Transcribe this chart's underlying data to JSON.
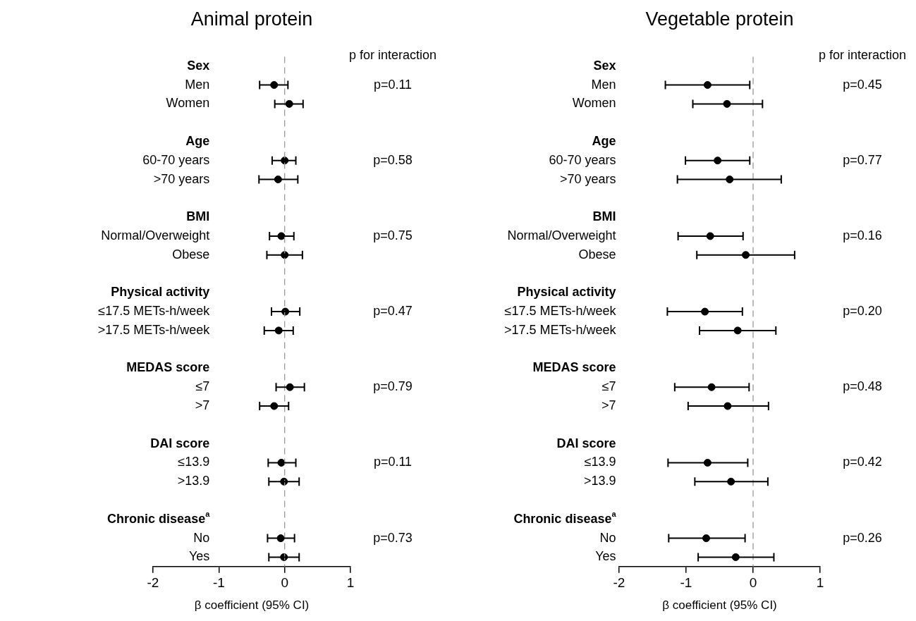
{
  "chart_data": [
    {
      "type": "scatter",
      "orientation": "horizontal",
      "title": "Animal protein",
      "xlabel": "β coefficient (95% CI)",
      "color": "#000000",
      "marker": "circle",
      "categories": [
        "Sex",
        "Men",
        "Women",
        null,
        "Age",
        "60-70 years",
        ">70 years",
        null,
        "BMI",
        "Normal/Overweight",
        "Obese",
        null,
        "Physical activity",
        "≤17.5 METs-h/week",
        ">17.5 METs-h/week",
        null,
        "MEDAS score",
        "≤7",
        ">7",
        null,
        "DAI score",
        "≤13.9",
        ">13.9",
        null,
        "Chronic disease$^{a}$",
        "No",
        "Yes"
      ],
      "values": [
        null,
        -0.16,
        0.07,
        null,
        null,
        0.0,
        -0.1,
        null,
        null,
        -0.05,
        0.0,
        null,
        null,
        0.01,
        -0.09,
        null,
        null,
        0.08,
        -0.16,
        null,
        null,
        -0.05,
        -0.01,
        null,
        null,
        -0.06,
        -0.01
      ],
      "errors": [
        null,
        [
          -0.38,
          0.05
        ],
        [
          -0.15,
          0.28
        ],
        null,
        null,
        [
          -0.19,
          0.17
        ],
        [
          -0.39,
          0.2
        ],
        null,
        null,
        [
          -0.23,
          0.14
        ],
        [
          -0.27,
          0.27
        ],
        null,
        null,
        [
          -0.2,
          0.23
        ],
        [
          -0.31,
          0.13
        ],
        null,
        null,
        [
          -0.13,
          0.3
        ],
        [
          -0.38,
          0.06
        ],
        null,
        null,
        [
          -0.25,
          0.17
        ],
        [
          -0.24,
          0.22
        ],
        null,
        null,
        [
          -0.26,
          0.15
        ],
        [
          -0.24,
          0.22
        ]
      ],
      "xlim": [
        -2,
        1
      ],
      "xticks": [
        -2,
        -1,
        0,
        1
      ],
      "ref_lines": [
        {
          "axis": "x",
          "value": 0,
          "color": "#999999",
          "line_style": "dashed"
        }
      ],
      "annotations": [
        "p for interaction",
        "p=0.11",
        "p=0.58",
        "p=0.75",
        "p=0.47",
        "p=0.79",
        "p=0.11",
        "p=0.73"
      ]
    },
    {
      "type": "scatter",
      "orientation": "horizontal",
      "title": "Vegetable protein",
      "xlabel": "β coefficient (95% CI)",
      "color": "#000000",
      "marker": "circle",
      "categories": [
        "Sex",
        "Men",
        "Women",
        null,
        "Age",
        "60-70 years",
        ">70 years",
        null,
        "BMI",
        "Normal/Overweight",
        "Obese",
        null,
        "Physical activity",
        "≤17.5 METs-h/week",
        ">17.5 METs-h/week",
        null,
        "MEDAS score",
        "≤7",
        ">7",
        null,
        "DAI score",
        "≤13.9",
        ">13.9",
        null,
        "Chronic disease$^{a}$",
        "No",
        "Yes"
      ],
      "values": [
        null,
        -0.68,
        -0.39,
        null,
        null,
        -0.53,
        -0.35,
        null,
        null,
        -0.64,
        -0.11,
        null,
        null,
        -0.72,
        -0.23,
        null,
        null,
        -0.62,
        -0.38,
        null,
        null,
        -0.68,
        -0.33,
        null,
        null,
        -0.7,
        -0.26
      ],
      "errors": [
        null,
        [
          -1.31,
          -0.05
        ],
        [
          -0.9,
          0.14
        ],
        null,
        null,
        [
          -1.01,
          -0.05
        ],
        [
          -1.13,
          0.42
        ],
        null,
        null,
        [
          -1.12,
          -0.15
        ],
        [
          -0.84,
          0.62
        ],
        null,
        null,
        [
          -1.28,
          -0.16
        ],
        [
          -0.8,
          0.34
        ],
        null,
        null,
        [
          -1.17,
          -0.06
        ],
        [
          -0.97,
          0.23
        ],
        null,
        null,
        [
          -1.27,
          -0.08
        ],
        [
          -0.87,
          0.22
        ],
        null,
        null,
        [
          -1.26,
          -0.12
        ],
        [
          -0.82,
          0.31
        ]
      ],
      "xlim": [
        -2,
        1
      ],
      "xticks": [
        -2,
        -1,
        0,
        1
      ],
      "ref_lines": [
        {
          "axis": "x",
          "value": 0,
          "color": "#999999",
          "line_style": "dashed"
        }
      ],
      "annotations": [
        "p for interaction",
        "p=0.45",
        "p=0.77",
        "p=0.16",
        "p=0.20",
        "p=0.48",
        "p=0.42",
        "p=0.26"
      ]
    }
  ]
}
